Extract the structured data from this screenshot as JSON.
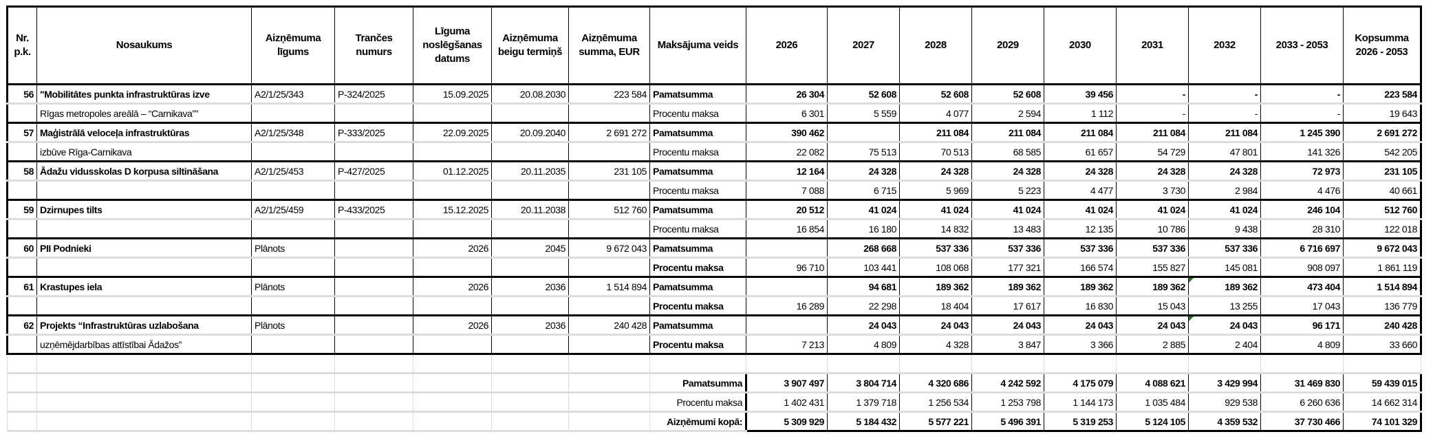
{
  "header": [
    "Nr. p.k.",
    "Nosaukums",
    "Aizņēmuma līgums",
    "Trančes numurs",
    "Līguma noslēgšanas datums",
    "Aizņēmuma beigu termiņš",
    "Aizņēmuma summa, EUR",
    "Maksājuma veids",
    "2026",
    "2027",
    "2028",
    "2029",
    "2030",
    "2031",
    "2032",
    "2033 - 2053",
    "Kopsumma 2026 - 2053"
  ],
  "labels": {
    "principal": "Pamatsumma",
    "interest": "Procentu maksa",
    "total": "Aizņēmumi kopā:"
  },
  "items": [
    {
      "nr": "56",
      "name": [
        "\"Mobilitātes punkta infrastruktūras izve",
        "Rīgas metropoles areālā – “Carnikava”\""
      ],
      "contract": "A2/1/25/343",
      "tranche": "P-324/2025",
      "signed": "15.09.2025",
      "end": "20.08.2030",
      "amount": "223 584",
      "interest_bold": false,
      "principal": [
        "26 304",
        "52 608",
        "52 608",
        "52 608",
        "39 456",
        "-",
        "-",
        "-",
        "223 584"
      ],
      "interest": [
        "6 301",
        "5 559",
        "4 077",
        "2 594",
        "1 112",
        "-",
        "-",
        "-",
        "19 643"
      ]
    },
    {
      "nr": "57",
      "name": [
        "Maģistrālā  veloceļa infrastruktūras",
        " izbūve Rīga-Carnikava"
      ],
      "contract": "A2/1/25/348",
      "tranche": "P-333/2025",
      "signed": "22.09.2025",
      "end": "20.09.2040",
      "amount": "2 691 272",
      "interest_bold": false,
      "principal": [
        "390 462",
        "",
        "211 084",
        "211 084",
        "211 084",
        "211 084",
        "211 084",
        "1 245 390",
        "2 691 272"
      ],
      "interest": [
        "22 082",
        "75 513",
        "70 513",
        "68 585",
        "61 657",
        "54 729",
        "47 801",
        "141 326",
        "542 205"
      ]
    },
    {
      "nr": "58",
      "name": [
        "Ādažu vidusskolas D korpusa siltināšana",
        ""
      ],
      "contract": "A2/1/25/453",
      "tranche": "P-427/2025",
      "signed": "01.12.2025",
      "end": "20.11.2035",
      "amount": "231 105",
      "interest_bold": false,
      "principal": [
        "12 164",
        "24 328",
        "24 328",
        "24 328",
        "24 328",
        "24 328",
        "24 328",
        "72 973",
        "231 105"
      ],
      "interest": [
        "7 088",
        "6 715",
        "5 969",
        "5 223",
        "4 477",
        "3 730",
        "2 984",
        "4 476",
        "40 661"
      ]
    },
    {
      "nr": "59",
      "name": [
        "Dzirnupes tilts",
        ""
      ],
      "contract": "A2/1/25/459",
      "tranche": "P-433/2025",
      "signed": "15.12.2025",
      "end": "20.11.2038",
      "amount": "512 760",
      "interest_bold": false,
      "principal": [
        "20 512",
        "41 024",
        "41 024",
        "41 024",
        "41 024",
        "41 024",
        "41 024",
        "246 104",
        "512 760"
      ],
      "interest": [
        "16 854",
        "16 180",
        "14 832",
        "13 483",
        "12 135",
        "10 786",
        "9 438",
        "28 310",
        "122 018"
      ]
    },
    {
      "nr": "60",
      "name": [
        "PII Podnieki",
        ""
      ],
      "contract": "Plānots",
      "tranche": "",
      "signed": "2026",
      "end": "2045",
      "amount": "9 672 043",
      "interest_bold": true,
      "principal": [
        "",
        "268 668",
        "537 336",
        "537 336",
        "537 336",
        "537 336",
        "537 336",
        "6 716 697",
        "9 672 043"
      ],
      "interest": [
        "96 710",
        "103 441",
        "108 068",
        "177 321",
        "166 574",
        "155 827",
        "145 081",
        "908 097",
        "1 861 119"
      ]
    },
    {
      "nr": "61",
      "name": [
        "Krastupes iela",
        ""
      ],
      "contract": "Plānots",
      "tranche": "",
      "signed": "2026",
      "end": "2036",
      "amount": "1 514 894",
      "interest_bold": true,
      "marker_col": 6,
      "principal": [
        "",
        "94 681",
        "189 362",
        "189 362",
        "189 362",
        "189 362",
        "189 362",
        "473 404",
        "1 514 894"
      ],
      "interest": [
        "16 289",
        "22 298",
        "18 404",
        "17 617",
        "16 830",
        "15 043",
        "13 255",
        "17 043",
        "136 779"
      ]
    },
    {
      "nr": "62",
      "name": [
        "Projekts “Infrastruktūras uzlabošana",
        "uzņēmējdarbības attīstībai Ādažos”"
      ],
      "contract": "Plānots",
      "tranche": "",
      "signed": "2026",
      "end": "2036",
      "amount": "240 428",
      "interest_bold": true,
      "marker_col": 6,
      "principal": [
        "",
        "24 043",
        "24 043",
        "24 043",
        "24 043",
        "24 043",
        "24 043",
        "96 171",
        "240 428"
      ],
      "interest": [
        "7 213",
        "4 809",
        "4 328",
        "3 847",
        "3 366",
        "2 885",
        "2 404",
        "4 809",
        "33 660"
      ]
    }
  ],
  "totals": {
    "principal": [
      "3 907 497",
      "3 804 714",
      "4 320 686",
      "4 242 592",
      "4 175 079",
      "4 088 621",
      "3 429 994",
      "31 469 830",
      "59 439 015"
    ],
    "interest": [
      "1 402 431",
      "1 379 718",
      "1 256 534",
      "1 253 798",
      "1 144 173",
      "1 035 484",
      "929 538",
      "6 260 636",
      "14 662 314"
    ],
    "total": [
      "5 309 929",
      "5 184 432",
      "5 577 221",
      "5 496 391",
      "5 319 253",
      "5 124 105",
      "4 359 532",
      "37 730 466",
      "74 101 329"
    ]
  },
  "colors": {
    "error_marker": "#1e7b1e",
    "grid": "#dcdcdc"
  }
}
